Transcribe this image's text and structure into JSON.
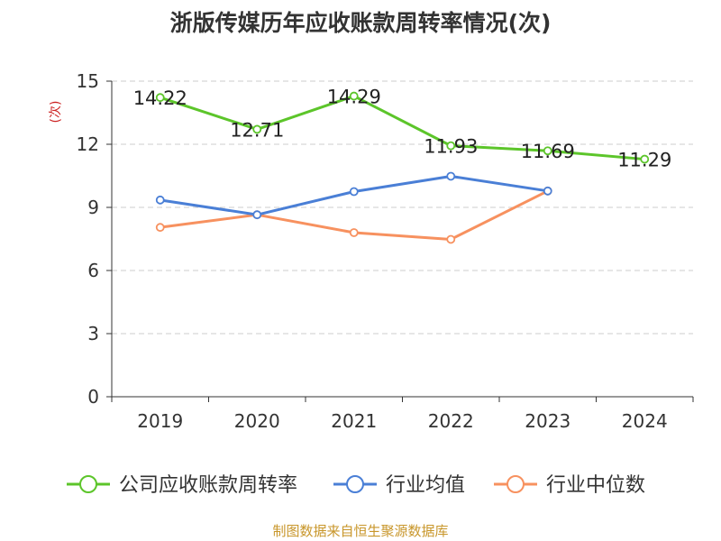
{
  "chart_data": {
    "type": "line",
    "title": "浙版传媒历年应收账款周转率情况(次)",
    "ylabel": "(次)",
    "categories": [
      "2019",
      "2020",
      "2021",
      "2022",
      "2023",
      "2024"
    ],
    "ylim": [
      0,
      15
    ],
    "yticks": [
      0,
      3,
      6,
      9,
      12,
      15
    ],
    "grid": true,
    "legend_position": "bottom",
    "series": [
      {
        "name": "公司应收账款周转率",
        "color": "#5cc52a",
        "values": [
          14.22,
          12.71,
          14.29,
          11.93,
          11.69,
          11.29
        ],
        "labels": [
          "14.22",
          "12.71",
          "14.29",
          "11.93",
          "11.69",
          "11.29"
        ]
      },
      {
        "name": "行业均值",
        "color": "#4a7fd6",
        "values": [
          9.35,
          8.65,
          9.75,
          10.48,
          9.78,
          null
        ]
      },
      {
        "name": "行业中位数",
        "color": "#f7915f",
        "values": [
          8.05,
          8.65,
          7.8,
          7.48,
          9.78,
          null
        ]
      }
    ],
    "source": "制图数据来自恒生聚源数据库"
  },
  "colors": {
    "ylabel": "#cc2222",
    "source": "#c8962a",
    "grid": "#cccccc",
    "axis": "#333333",
    "text": "#333333"
  }
}
